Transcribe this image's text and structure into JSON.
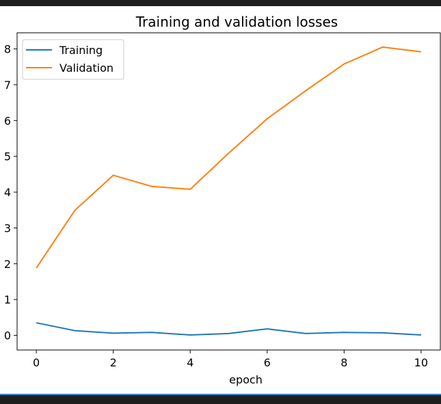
{
  "chart_data": {
    "type": "line",
    "title": "Training and validation losses",
    "xlabel": "epoch",
    "ylabel": "",
    "xlim": [
      -0.5,
      10.5
    ],
    "ylim": [
      -0.41,
      8.45
    ],
    "x_ticks": [
      0,
      2,
      4,
      6,
      8,
      10
    ],
    "y_ticks": [
      0,
      1,
      2,
      3,
      4,
      5,
      6,
      7,
      8
    ],
    "grid": false,
    "legend_position": "top-left",
    "x": [
      0,
      1,
      2,
      3,
      4,
      5,
      6,
      7,
      8,
      9,
      10
    ],
    "series": [
      {
        "name": "Training",
        "color": "#1f77b4",
        "values": [
          0.35,
          0.13,
          0.06,
          0.08,
          0.01,
          0.05,
          0.18,
          0.05,
          0.08,
          0.07,
          0.01
        ]
      },
      {
        "name": "Validation",
        "color": "#ff7f0e",
        "values": [
          1.88,
          3.49,
          4.47,
          4.16,
          4.08,
          5.09,
          6.05,
          6.83,
          7.58,
          8.05,
          7.92
        ]
      }
    ]
  }
}
